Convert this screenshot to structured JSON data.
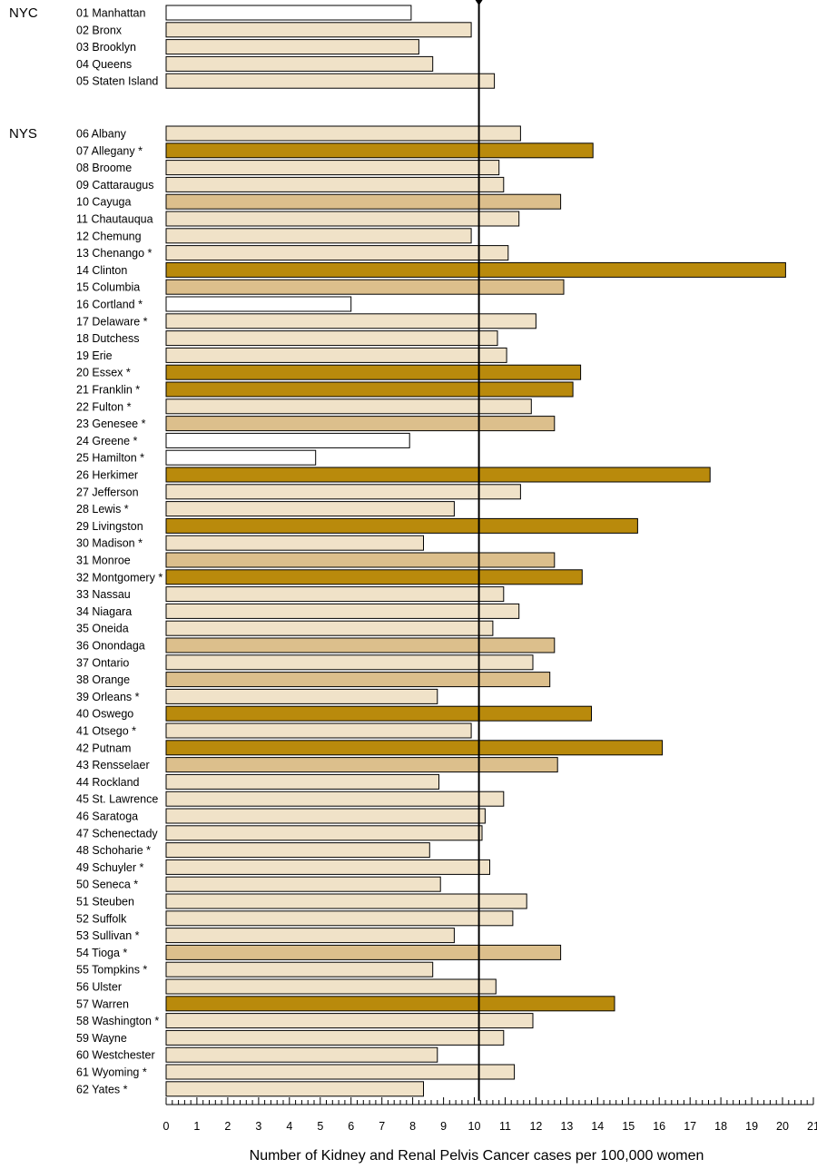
{
  "chart_data": {
    "type": "bar",
    "orientation": "horizontal",
    "title": "",
    "xlabel": "Number of Kidney and Renal Pelvis Cancer cases per 100,000 women",
    "ylabel": "",
    "xlim": [
      0,
      21
    ],
    "xticks": [
      "0",
      "1",
      "2",
      "3",
      "4",
      "5",
      "6",
      "7",
      "8",
      "9",
      "10",
      "11",
      "12",
      "13",
      "14",
      "15",
      "16",
      "17",
      "18",
      "19",
      "20",
      "21"
    ],
    "reference_line": 10.15,
    "grid": false,
    "colors": {
      "white": "#ffffff",
      "light": "#f0e2c8",
      "medium": "#dcbf8c",
      "dark": "#b98a0c",
      "stroke": "#000000"
    },
    "groups": [
      {
        "label": "NYC",
        "bars": [
          {
            "name": "01 Manhattan",
            "value": 7.95,
            "shade": "white"
          },
          {
            "name": "02 Bronx",
            "value": 9.9,
            "shade": "light"
          },
          {
            "name": "03 Brooklyn",
            "value": 8.2,
            "shade": "light"
          },
          {
            "name": "04 Queens",
            "value": 8.65,
            "shade": "light"
          },
          {
            "name": "05 Staten Island",
            "value": 10.65,
            "shade": "light"
          }
        ]
      },
      {
        "label": "NYS",
        "bars": [
          {
            "name": "06 Albany",
            "value": 11.5,
            "shade": "light"
          },
          {
            "name": "07 Allegany *",
            "value": 13.85,
            "shade": "dark"
          },
          {
            "name": "08 Broome",
            "value": 10.8,
            "shade": "light"
          },
          {
            "name": "09 Cattaraugus",
            "value": 10.95,
            "shade": "light"
          },
          {
            "name": "10 Cayuga",
            "value": 12.8,
            "shade": "medium"
          },
          {
            "name": "11 Chautauqua",
            "value": 11.45,
            "shade": "light"
          },
          {
            "name": "12 Chemung",
            "value": 9.9,
            "shade": "light"
          },
          {
            "name": "13 Chenango *",
            "value": 11.1,
            "shade": "light"
          },
          {
            "name": "14 Clinton",
            "value": 20.1,
            "shade": "dark"
          },
          {
            "name": "15 Columbia",
            "value": 12.9,
            "shade": "medium"
          },
          {
            "name": "16 Cortland *",
            "value": 6.0,
            "shade": "white"
          },
          {
            "name": "17 Delaware *",
            "value": 12.0,
            "shade": "light"
          },
          {
            "name": "18 Dutchess",
            "value": 10.75,
            "shade": "light"
          },
          {
            "name": "19 Erie",
            "value": 11.05,
            "shade": "light"
          },
          {
            "name": "20 Essex *",
            "value": 13.45,
            "shade": "dark"
          },
          {
            "name": "21 Franklin *",
            "value": 13.2,
            "shade": "dark"
          },
          {
            "name": "22 Fulton *",
            "value": 11.85,
            "shade": "light"
          },
          {
            "name": "23 Genesee *",
            "value": 12.6,
            "shade": "medium"
          },
          {
            "name": "24 Greene *",
            "value": 7.9,
            "shade": "white"
          },
          {
            "name": "25 Hamilton *",
            "value": 4.85,
            "shade": "white"
          },
          {
            "name": "26 Herkimer",
            "value": 17.65,
            "shade": "dark"
          },
          {
            "name": "27 Jefferson",
            "value": 11.5,
            "shade": "light"
          },
          {
            "name": "28 Lewis *",
            "value": 9.35,
            "shade": "light"
          },
          {
            "name": "29 Livingston",
            "value": 15.3,
            "shade": "dark"
          },
          {
            "name": "30 Madison *",
            "value": 8.35,
            "shade": "light"
          },
          {
            "name": "31 Monroe",
            "value": 12.6,
            "shade": "medium"
          },
          {
            "name": "32 Montgomery *",
            "value": 13.5,
            "shade": "dark"
          },
          {
            "name": "33 Nassau",
            "value": 10.95,
            "shade": "light"
          },
          {
            "name": "34 Niagara",
            "value": 11.45,
            "shade": "light"
          },
          {
            "name": "35 Oneida",
            "value": 10.6,
            "shade": "light"
          },
          {
            "name": "36 Onondaga",
            "value": 12.6,
            "shade": "medium"
          },
          {
            "name": "37 Ontario",
            "value": 11.9,
            "shade": "light"
          },
          {
            "name": "38 Orange",
            "value": 12.45,
            "shade": "medium"
          },
          {
            "name": "39 Orleans *",
            "value": 8.8,
            "shade": "light"
          },
          {
            "name": "40 Oswego",
            "value": 13.8,
            "shade": "dark"
          },
          {
            "name": "41 Otsego *",
            "value": 9.9,
            "shade": "light"
          },
          {
            "name": "42 Putnam",
            "value": 16.1,
            "shade": "dark"
          },
          {
            "name": "43 Rensselaer",
            "value": 12.7,
            "shade": "medium"
          },
          {
            "name": "44 Rockland",
            "value": 8.85,
            "shade": "light"
          },
          {
            "name": "45 St. Lawrence",
            "value": 10.95,
            "shade": "light"
          },
          {
            "name": "46 Saratoga",
            "value": 10.35,
            "shade": "light"
          },
          {
            "name": "47 Schenectady",
            "value": 10.25,
            "shade": "light"
          },
          {
            "name": "48 Schoharie *",
            "value": 8.55,
            "shade": "light"
          },
          {
            "name": "49 Schuyler *",
            "value": 10.5,
            "shade": "light"
          },
          {
            "name": "50 Seneca *",
            "value": 8.9,
            "shade": "light"
          },
          {
            "name": "51 Steuben",
            "value": 11.7,
            "shade": "light"
          },
          {
            "name": "52 Suffolk",
            "value": 11.25,
            "shade": "light"
          },
          {
            "name": "53 Sullivan *",
            "value": 9.35,
            "shade": "light"
          },
          {
            "name": "54 Tioga *",
            "value": 12.8,
            "shade": "medium"
          },
          {
            "name": "55 Tompkins *",
            "value": 8.65,
            "shade": "light"
          },
          {
            "name": "56 Ulster",
            "value": 10.7,
            "shade": "light"
          },
          {
            "name": "57 Warren",
            "value": 14.55,
            "shade": "dark"
          },
          {
            "name": "58 Washington *",
            "value": 11.9,
            "shade": "light"
          },
          {
            "name": "59 Wayne",
            "value": 10.95,
            "shade": "light"
          },
          {
            "name": "60 Westchester",
            "value": 8.8,
            "shade": "light"
          },
          {
            "name": "61 Wyoming *",
            "value": 11.3,
            "shade": "light"
          },
          {
            "name": "62 Yates *",
            "value": 8.35,
            "shade": "light"
          }
        ]
      }
    ]
  }
}
